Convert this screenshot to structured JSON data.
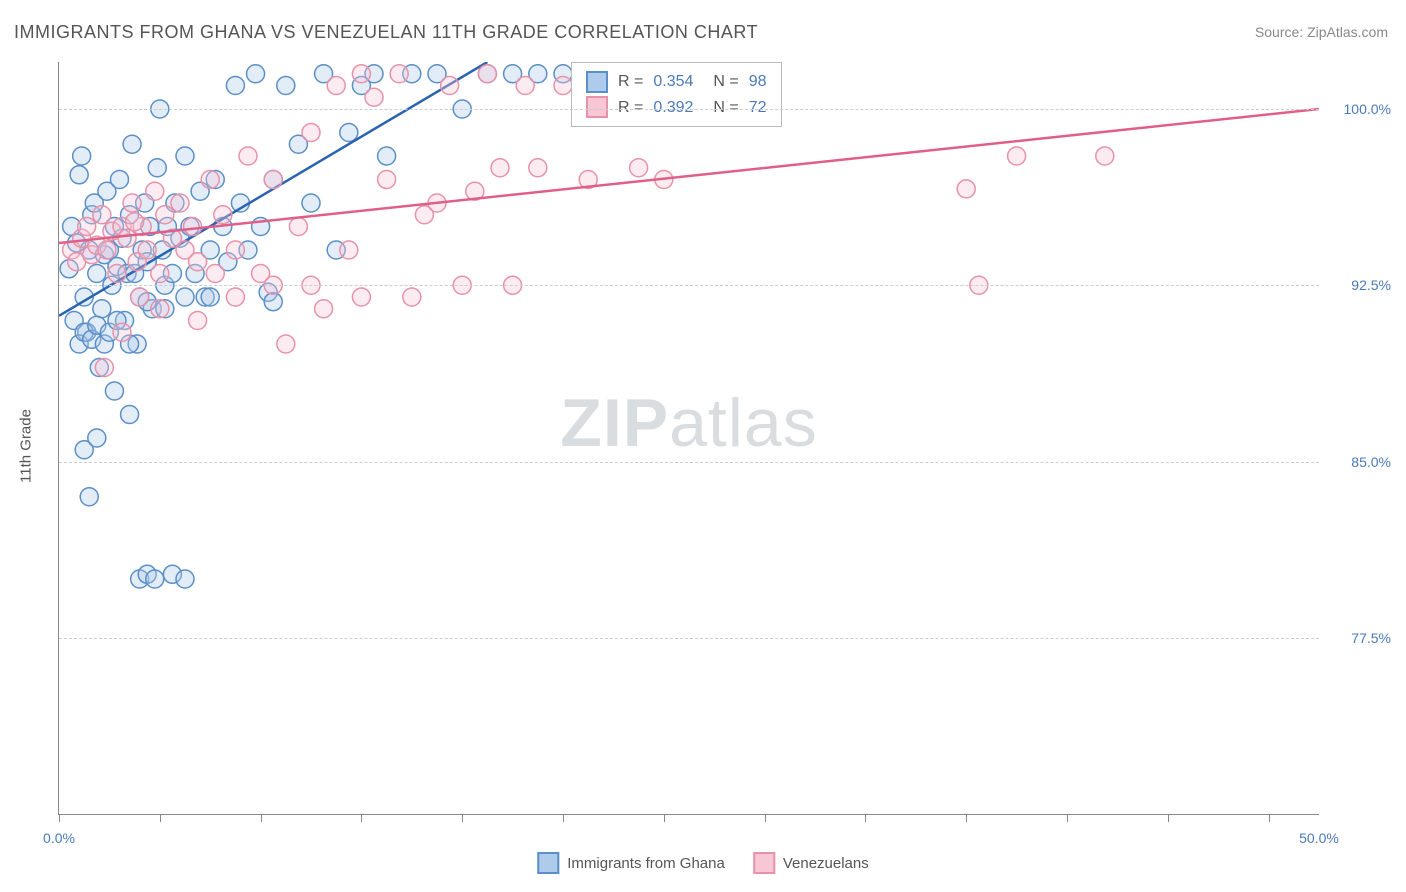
{
  "title": "IMMIGRANTS FROM GHANA VS VENEZUELAN 11TH GRADE CORRELATION CHART",
  "source": "Source: ZipAtlas.com",
  "watermark": {
    "bold": "ZIP",
    "rest": "atlas"
  },
  "yaxis_title": "11th Grade",
  "chart": {
    "type": "scatter",
    "background_color": "#ffffff",
    "grid_color": "#cfcfcf",
    "axis_color": "#888888",
    "label_color": "#4a7ab8",
    "title_color": "#555555",
    "title_fontsize": 18,
    "label_fontsize": 14,
    "xlim": [
      0,
      50
    ],
    "ylim": [
      70,
      102
    ],
    "xticks": [
      0,
      4,
      8,
      12,
      16,
      20,
      24,
      28,
      32,
      36,
      40,
      44,
      48
    ],
    "xtick_labels": {
      "0": "0.0%",
      "50": "50.0%"
    },
    "yticks": [
      77.5,
      85.0,
      92.5,
      100.0
    ],
    "ytick_labels": [
      "77.5%",
      "85.0%",
      "92.5%",
      "100.0%"
    ],
    "marker_radius": 9,
    "marker_fill_opacity": 0.35,
    "marker_stroke_width": 1.5,
    "trend_line_width": 2.5,
    "series": [
      {
        "name": "Immigrants from Ghana",
        "color_fill": "#aecbec",
        "color_stroke": "#5b8fc7",
        "trend_color": "#2a63b0",
        "R": "0.354",
        "N": "98",
        "trend": {
          "x1": 0,
          "y1": 91.2,
          "x2": 17,
          "y2": 102
        },
        "points": [
          [
            0.4,
            93.2
          ],
          [
            0.5,
            95.0
          ],
          [
            0.6,
            91.0
          ],
          [
            0.7,
            94.3
          ],
          [
            0.8,
            97.2
          ],
          [
            0.9,
            98.0
          ],
          [
            1.0,
            92.0
          ],
          [
            1.1,
            90.5
          ],
          [
            1.2,
            94.0
          ],
          [
            1.3,
            95.5
          ],
          [
            1.4,
            96.0
          ],
          [
            1.5,
            93.0
          ],
          [
            1.6,
            89.0
          ],
          [
            1.7,
            91.5
          ],
          [
            1.8,
            93.8
          ],
          [
            1.9,
            96.5
          ],
          [
            2.0,
            94.0
          ],
          [
            2.1,
            92.5
          ],
          [
            2.2,
            95.0
          ],
          [
            2.3,
            93.3
          ],
          [
            2.4,
            97.0
          ],
          [
            2.5,
            94.5
          ],
          [
            2.6,
            91.0
          ],
          [
            2.7,
            93.0
          ],
          [
            2.8,
            95.5
          ],
          [
            2.9,
            98.5
          ],
          [
            3.0,
            93.0
          ],
          [
            3.1,
            90.0
          ],
          [
            3.2,
            92.0
          ],
          [
            3.3,
            94.0
          ],
          [
            3.4,
            96.0
          ],
          [
            3.5,
            93.5
          ],
          [
            3.6,
            95.0
          ],
          [
            3.7,
            91.5
          ],
          [
            3.9,
            97.5
          ],
          [
            4.0,
            100.0
          ],
          [
            4.1,
            94.0
          ],
          [
            4.2,
            92.5
          ],
          [
            4.3,
            95.0
          ],
          [
            4.5,
            93.0
          ],
          [
            4.6,
            96.0
          ],
          [
            4.8,
            94.5
          ],
          [
            5.0,
            98.0
          ],
          [
            5.2,
            95.0
          ],
          [
            5.4,
            93.0
          ],
          [
            5.6,
            96.5
          ],
          [
            5.8,
            92.0
          ],
          [
            6.0,
            94.0
          ],
          [
            6.2,
            97.0
          ],
          [
            6.5,
            95.0
          ],
          [
            6.7,
            93.5
          ],
          [
            7.0,
            101.0
          ],
          [
            7.2,
            96.0
          ],
          [
            7.5,
            94.0
          ],
          [
            7.8,
            101.5
          ],
          [
            8.0,
            95.0
          ],
          [
            8.3,
            92.2
          ],
          [
            8.5,
            97.0
          ],
          [
            9.0,
            101.0
          ],
          [
            9.5,
            98.5
          ],
          [
            10.0,
            96.0
          ],
          [
            10.5,
            101.5
          ],
          [
            11.0,
            94.0
          ],
          [
            11.5,
            99.0
          ],
          [
            12.0,
            101.0
          ],
          [
            12.5,
            101.5
          ],
          [
            13.0,
            98.0
          ],
          [
            14.0,
            101.5
          ],
          [
            15.0,
            101.5
          ],
          [
            16.0,
            100.0
          ],
          [
            17.0,
            101.5
          ],
          [
            18.0,
            101.5
          ],
          [
            19.0,
            101.5
          ],
          [
            20.0,
            101.5
          ],
          [
            1.0,
            85.5
          ],
          [
            1.5,
            86.0
          ],
          [
            2.2,
            88.0
          ],
          [
            2.8,
            87.0
          ],
          [
            3.2,
            80.0
          ],
          [
            3.5,
            80.2
          ],
          [
            3.8,
            80.0
          ],
          [
            4.5,
            80.2
          ],
          [
            5.0,
            80.0
          ],
          [
            1.2,
            83.5
          ],
          [
            0.8,
            90.0
          ],
          [
            1.0,
            90.5
          ],
          [
            1.3,
            90.2
          ],
          [
            1.5,
            90.8
          ],
          [
            1.8,
            90.0
          ],
          [
            2.0,
            90.5
          ],
          [
            2.3,
            91.0
          ],
          [
            2.8,
            90.0
          ],
          [
            3.5,
            91.8
          ],
          [
            4.2,
            91.5
          ],
          [
            5.0,
            92.0
          ],
          [
            6.0,
            92.0
          ],
          [
            8.5,
            91.8
          ]
        ]
      },
      {
        "name": "Venezuelans",
        "color_fill": "#f7c7d6",
        "color_stroke": "#e792aa",
        "trend_color": "#e05f88",
        "R": "0.392",
        "N": "72",
        "trend": {
          "x1": 0,
          "y1": 94.3,
          "x2": 50,
          "y2": 100.0
        },
        "points": [
          [
            0.5,
            94.0
          ],
          [
            0.7,
            93.5
          ],
          [
            0.9,
            94.5
          ],
          [
            1.1,
            95.0
          ],
          [
            1.3,
            93.8
          ],
          [
            1.5,
            94.2
          ],
          [
            1.7,
            95.5
          ],
          [
            1.9,
            94.0
          ],
          [
            2.1,
            94.8
          ],
          [
            2.3,
            93.0
          ],
          [
            2.5,
            95.0
          ],
          [
            2.7,
            94.5
          ],
          [
            2.9,
            96.0
          ],
          [
            3.1,
            93.5
          ],
          [
            3.3,
            95.0
          ],
          [
            3.5,
            94.0
          ],
          [
            3.8,
            96.5
          ],
          [
            4.0,
            93.0
          ],
          [
            4.2,
            95.5
          ],
          [
            4.5,
            94.5
          ],
          [
            4.8,
            96.0
          ],
          [
            5.0,
            94.0
          ],
          [
            5.3,
            95.0
          ],
          [
            5.5,
            93.5
          ],
          [
            6.0,
            97.0
          ],
          [
            6.2,
            93.0
          ],
          [
            6.5,
            95.5
          ],
          [
            7.0,
            94.0
          ],
          [
            7.5,
            98.0
          ],
          [
            8.0,
            93.0
          ],
          [
            8.5,
            97.0
          ],
          [
            9.0,
            90.0
          ],
          [
            9.5,
            95.0
          ],
          [
            10.0,
            99.0
          ],
          [
            10.5,
            91.5
          ],
          [
            11.0,
            101.0
          ],
          [
            11.5,
            94.0
          ],
          [
            12.0,
            101.5
          ],
          [
            12.5,
            100.5
          ],
          [
            13.0,
            97.0
          ],
          [
            13.5,
            101.5
          ],
          [
            14.5,
            95.5
          ],
          [
            15.0,
            96.0
          ],
          [
            15.5,
            101.0
          ],
          [
            16.5,
            96.5
          ],
          [
            17.0,
            101.5
          ],
          [
            17.5,
            97.5
          ],
          [
            18.5,
            101.0
          ],
          [
            19.0,
            97.5
          ],
          [
            20.0,
            101.0
          ],
          [
            21.0,
            97.0
          ],
          [
            22.0,
            101.5
          ],
          [
            23.0,
            97.5
          ],
          [
            24.0,
            97.0
          ],
          [
            25.0,
            101.0
          ],
          [
            36.5,
            92.5
          ],
          [
            36.0,
            96.6
          ],
          [
            38.0,
            98.0
          ],
          [
            41.5,
            98.0
          ],
          [
            1.8,
            89.0
          ],
          [
            2.5,
            90.5
          ],
          [
            3.2,
            92.0
          ],
          [
            4.0,
            91.5
          ],
          [
            5.5,
            91.0
          ],
          [
            7.0,
            92.0
          ],
          [
            8.5,
            92.5
          ],
          [
            10.0,
            92.5
          ],
          [
            12.0,
            92.0
          ],
          [
            14.0,
            92.0
          ],
          [
            16.0,
            92.5
          ],
          [
            18.0,
            92.5
          ],
          [
            3.0,
            95.2
          ]
        ]
      }
    ]
  },
  "legend": {
    "series1_label": "Immigrants from Ghana",
    "series2_label": "Venezuelans"
  }
}
